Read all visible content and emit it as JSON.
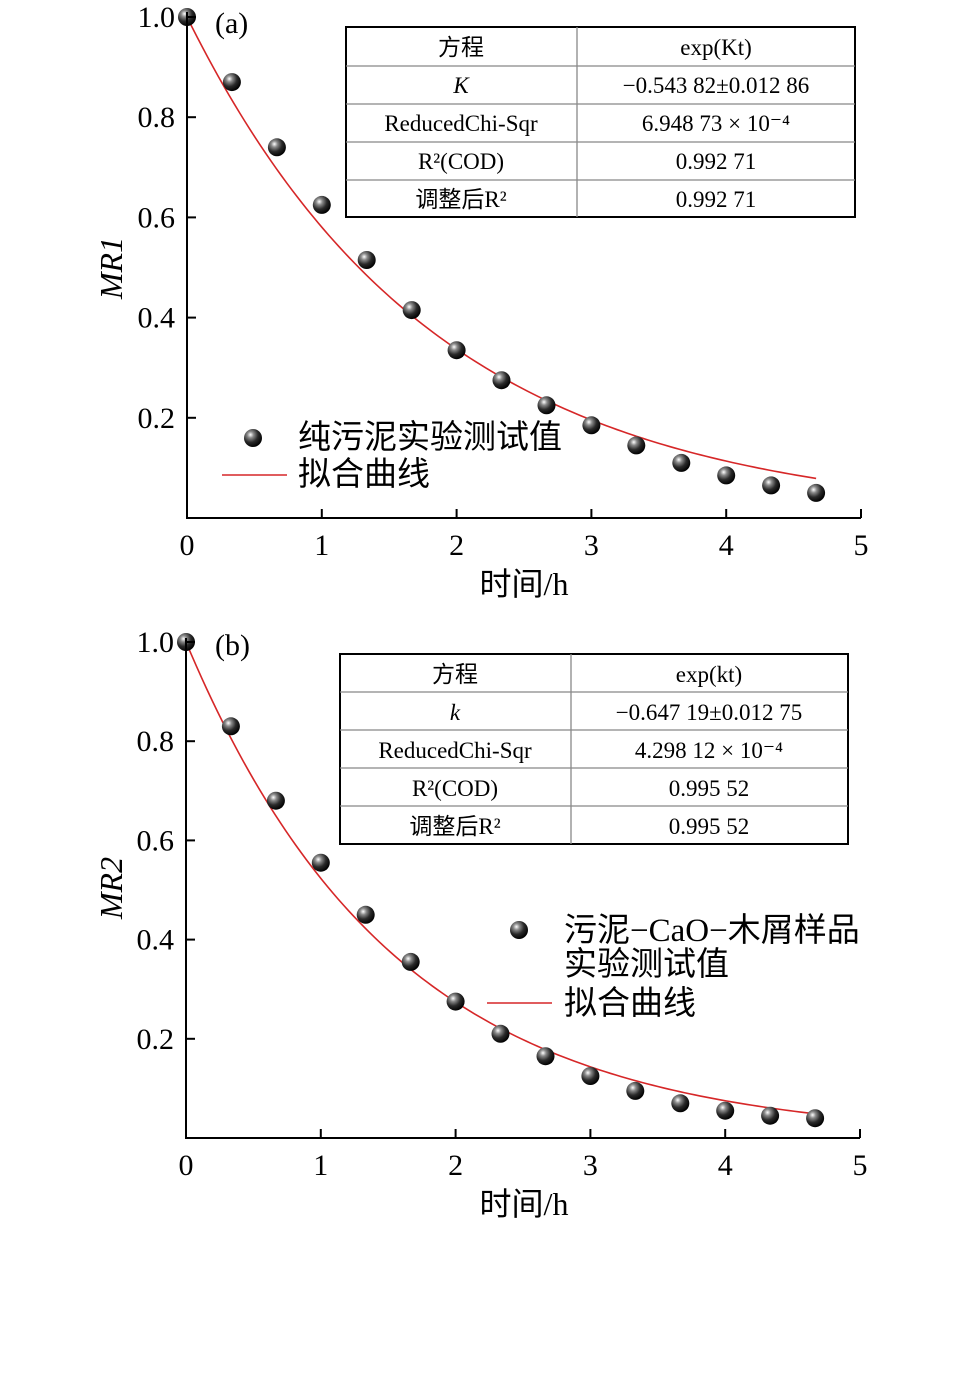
{
  "chart_data": [
    {
      "type": "scatter",
      "panel_label": "(a)",
      "xlabel": "时间/h",
      "ylabel": "MR1",
      "xlim": [
        0,
        5
      ],
      "ylim": [
        0,
        1.0
      ],
      "x_ticks": [
        "0",
        "1",
        "2",
        "3",
        "4",
        "5"
      ],
      "y_ticks": [
        "0.2",
        "0.4",
        "0.6",
        "0.8",
        "1.0"
      ],
      "series": [
        {
          "name": "纯污泥实验测试值",
          "kind": "scatter",
          "x": [
            0,
            0.333,
            0.667,
            1.0,
            1.333,
            1.667,
            2.0,
            2.333,
            2.667,
            3.0,
            3.333,
            3.667,
            4.0,
            4.333,
            4.667
          ],
          "y": [
            1.0,
            0.87,
            0.74,
            0.625,
            0.515,
            0.415,
            0.335,
            0.275,
            0.225,
            0.185,
            0.145,
            0.11,
            0.085,
            0.065,
            0.05
          ]
        },
        {
          "name": "拟合曲线",
          "kind": "line",
          "model": "exp(Kt)",
          "k": -0.54382,
          "x_range": [
            0,
            4.667
          ]
        }
      ],
      "legend": [
        "纯污泥实验测试值",
        "拟合曲线"
      ],
      "fit_table": {
        "rows": [
          [
            "方程",
            "exp(Kt)"
          ],
          [
            "K",
            "−0.543 82±0.012 86"
          ],
          [
            "ReducedChi-Sqr",
            "6.948 73 × 10⁻⁴"
          ],
          [
            "R²(COD)",
            "0.992 71"
          ],
          [
            "调整后R²",
            "0.992 71"
          ]
        ]
      },
      "colors": {
        "fit": "#d62728",
        "marker": "#111111"
      }
    },
    {
      "type": "scatter",
      "panel_label": "(b)",
      "xlabel": "时间/h",
      "ylabel": "MR2",
      "xlim": [
        0,
        5
      ],
      "ylim": [
        0,
        1.0
      ],
      "x_ticks": [
        "0",
        "1",
        "2",
        "3",
        "4",
        "5"
      ],
      "y_ticks": [
        "0.2",
        "0.4",
        "0.6",
        "0.8",
        "1.0"
      ],
      "series": [
        {
          "name": "污泥-CaO-木屑样品实验测试值",
          "kind": "scatter",
          "x": [
            0,
            0.333,
            0.667,
            1.0,
            1.333,
            1.667,
            2.0,
            2.333,
            2.667,
            3.0,
            3.333,
            3.667,
            4.0,
            4.333,
            4.667
          ],
          "y": [
            1.0,
            0.83,
            0.68,
            0.555,
            0.45,
            0.355,
            0.275,
            0.21,
            0.165,
            0.125,
            0.095,
            0.07,
            0.055,
            0.045,
            0.04
          ]
        },
        {
          "name": "拟合曲线",
          "kind": "line",
          "model": "exp(kt)",
          "k": -0.64719,
          "x_range": [
            0,
            4.667
          ]
        }
      ],
      "legend": [
        "污泥−CaO−木屑样品",
        "实验测试值",
        "拟合曲线"
      ],
      "fit_table": {
        "rows": [
          [
            "方程",
            "exp(kt)"
          ],
          [
            "k",
            "−0.647 19±0.012 75"
          ],
          [
            "ReducedChi-Sqr",
            "4.298 12 × 10⁻⁴"
          ],
          [
            "R²(COD)",
            "0.995 52"
          ],
          [
            "调整后R²",
            "0.995 52"
          ]
        ]
      },
      "colors": {
        "fit": "#d62728",
        "marker": "#111111"
      }
    }
  ]
}
